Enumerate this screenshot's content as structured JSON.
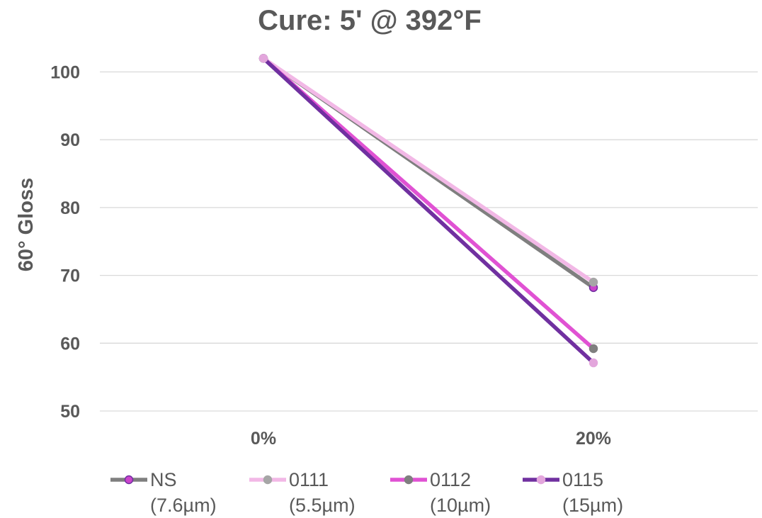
{
  "chart_data": {
    "type": "line",
    "title": "Cure: 5' @ 392°F",
    "xlabel": "",
    "ylabel": "60° Gloss",
    "categories": [
      "0%",
      "20%"
    ],
    "ylim": [
      50,
      100
    ],
    "yticks": [
      50,
      60,
      70,
      80,
      90,
      100
    ],
    "grid": true,
    "legend_position": "bottom",
    "series": [
      {
        "name": "NS",
        "subname": "(7.6µm)",
        "values": [
          102.0,
          68.2
        ],
        "line_color": "#7f7f7f",
        "marker_color": "#cc44cc",
        "marker_edge": "#7030a0"
      },
      {
        "name": "0111",
        "subname": "(5.5µm)",
        "values": [
          102.0,
          69.0
        ],
        "line_color": "#f2b8e6",
        "marker_color": "#a6a6a6",
        "marker_edge": "#a6a6a6"
      },
      {
        "name": "0112",
        "subname": "(10µm)",
        "values": [
          102.0,
          59.2
        ],
        "line_color": "#e052d3",
        "marker_color": "#7f7f7f",
        "marker_edge": "#7f7f7f"
      },
      {
        "name": "0115",
        "subname": "(15µm)",
        "values": [
          102.0,
          57.1
        ],
        "line_color": "#7030a0",
        "marker_color": "#e3a6dc",
        "marker_edge": "#e3a6dc"
      }
    ]
  }
}
